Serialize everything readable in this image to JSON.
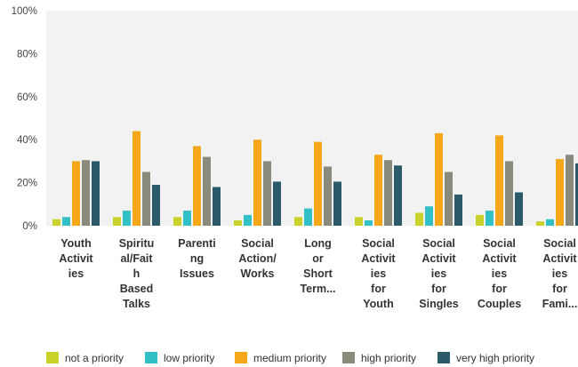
{
  "chart_data": {
    "type": "bar",
    "categories": [
      "Youth Activities",
      "Spiritual/Faith Based Talks",
      "Parenting Issues",
      "Social Action/ Works",
      "Long or Short Term...",
      "Social Activities for Youth",
      "Social Activities for Singles",
      "Social Activities for Couples",
      "Social Activities for Fami..."
    ],
    "category_lines": [
      [
        "Youth",
        "Activit",
        "ies"
      ],
      [
        "Spiritu",
        "al/Fait",
        "h",
        "Based",
        "Talks"
      ],
      [
        "Parenti",
        "ng",
        "Issues"
      ],
      [
        "Social",
        "Action/",
        "Works"
      ],
      [
        "Long",
        "or",
        "Short",
        "Term..."
      ],
      [
        "Social",
        "Activit",
        "ies",
        "for",
        "Youth"
      ],
      [
        "Social",
        "Activit",
        "ies",
        "for",
        "Singles"
      ],
      [
        "Social",
        "Activit",
        "ies",
        "for",
        "Couples"
      ],
      [
        "Social",
        "Activit",
        "ies",
        "for",
        "Fami..."
      ]
    ],
    "series": [
      {
        "name": "not a priority",
        "color": "#c9d22a",
        "values": [
          3,
          4,
          4,
          2.5,
          4,
          4,
          6,
          5,
          2
        ]
      },
      {
        "name": "low priority",
        "color": "#33bfc6",
        "values": [
          4,
          7,
          7,
          5,
          8,
          2.5,
          9,
          7,
          3
        ]
      },
      {
        "name": "medium priority",
        "color": "#f5a71a",
        "values": [
          30,
          44,
          37,
          40,
          39,
          33,
          43,
          42,
          31
        ]
      },
      {
        "name": "high priority",
        "color": "#898a7b",
        "values": [
          30.5,
          25,
          32,
          30,
          27.5,
          30.5,
          25,
          30,
          33
        ]
      },
      {
        "name": "very high priority",
        "color": "#2b5a68",
        "values": [
          30,
          19,
          18,
          20.5,
          20.5,
          28,
          14.5,
          15.5,
          29
        ]
      }
    ],
    "yticks": [
      "0%",
      "20%",
      "40%",
      "60%",
      "80%",
      "100%"
    ],
    "ylim": [
      0,
      100
    ],
    "ylabel": "",
    "xlabel": "",
    "title": "",
    "grid": false,
    "legend_position": "bottom"
  }
}
